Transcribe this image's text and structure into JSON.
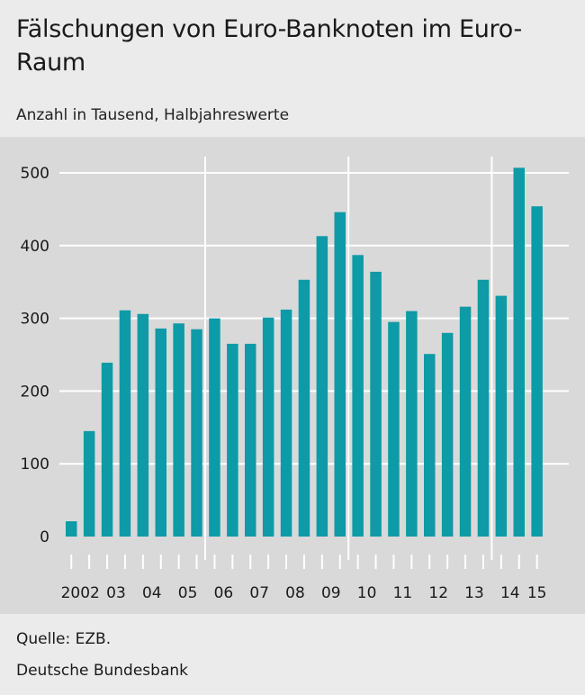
{
  "chart_data": {
    "type": "bar",
    "title": "Fälschungen von Euro-Banknoten im Euro-Raum",
    "subtitle": "Anzahl in Tausend, Halbjahreswerte",
    "ylim": [
      0,
      500
    ],
    "yticks": [
      0,
      100,
      200,
      300,
      400,
      500
    ],
    "bar_color": "#0e9aa7",
    "grid": true,
    "year_labels": [
      "2002",
      "03",
      "04",
      "05",
      "06",
      "07",
      "08",
      "09",
      "10",
      "11",
      "12",
      "13",
      "14",
      "15"
    ],
    "values": [
      21,
      145,
      239,
      311,
      306,
      286,
      293,
      285,
      300,
      265,
      265,
      301,
      312,
      353,
      413,
      446,
      387,
      364,
      295,
      310,
      251,
      280,
      316,
      353,
      331,
      507,
      454
    ]
  },
  "footer": {
    "source": "Quelle: EZB.",
    "credit": "Deutsche Bundesbank"
  }
}
